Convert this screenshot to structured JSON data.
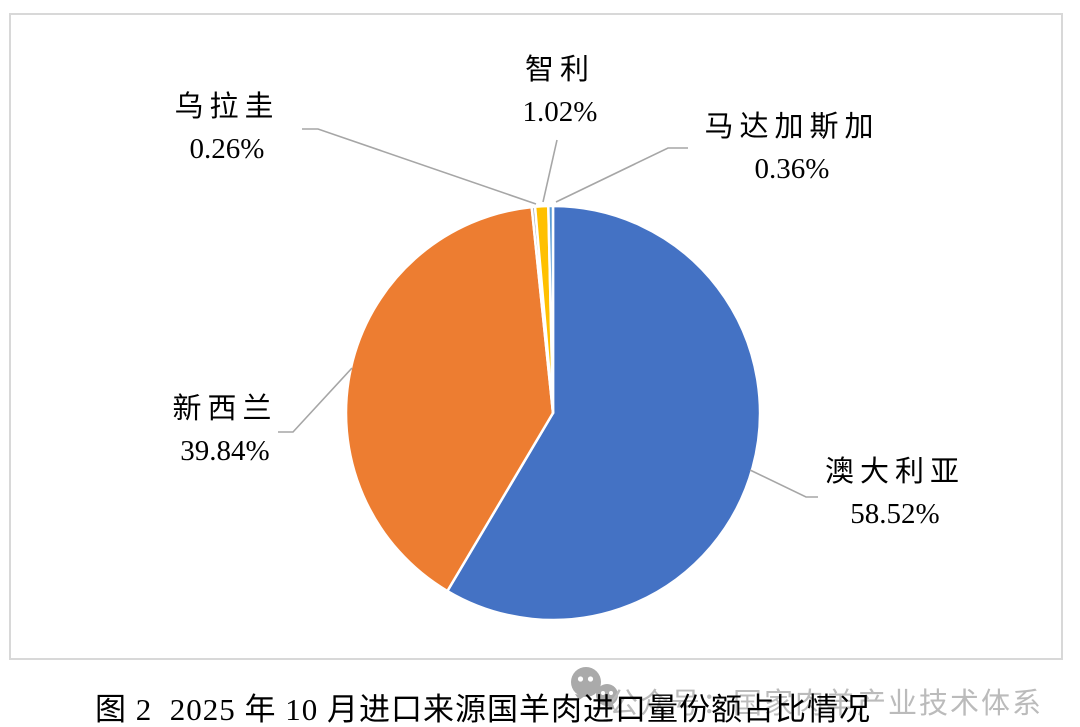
{
  "chart_data": {
    "type": "pie",
    "title": "图 2  2025 年 10 月进口来源国羊肉进口量份额占比情况",
    "start_angle_deg": 0,
    "direction": "clockwise",
    "legend_position": "none",
    "label_style": "category-name-and-percent-callouts",
    "leader_line_color": "#A6A6A6",
    "slices": [
      {
        "key": "australia",
        "label": "澳大利亚",
        "value": 58.52,
        "display": "58.52%",
        "color": "#4472C4"
      },
      {
        "key": "new-zealand",
        "label": "新西兰",
        "value": 39.84,
        "display": "39.84%",
        "color": "#ED7D31"
      },
      {
        "key": "uruguay",
        "label": "乌拉圭",
        "value": 0.26,
        "display": "0.26%",
        "color": "#A5A5A5"
      },
      {
        "key": "chile",
        "label": "智利",
        "value": 1.02,
        "display": "1.02%",
        "color": "#FFC000"
      },
      {
        "key": "madagascar",
        "label": "马达加斯加",
        "value": 0.36,
        "display": "0.36%",
        "color": "#5B9BD5"
      }
    ]
  },
  "caption": "图 2  2025 年 10 月进口来源国羊肉进口量份额占比情况",
  "watermark": {
    "text": "公众号：国家肉羊产业技术体系",
    "logo": "wechat-icon",
    "color": "#bbbbbb"
  }
}
